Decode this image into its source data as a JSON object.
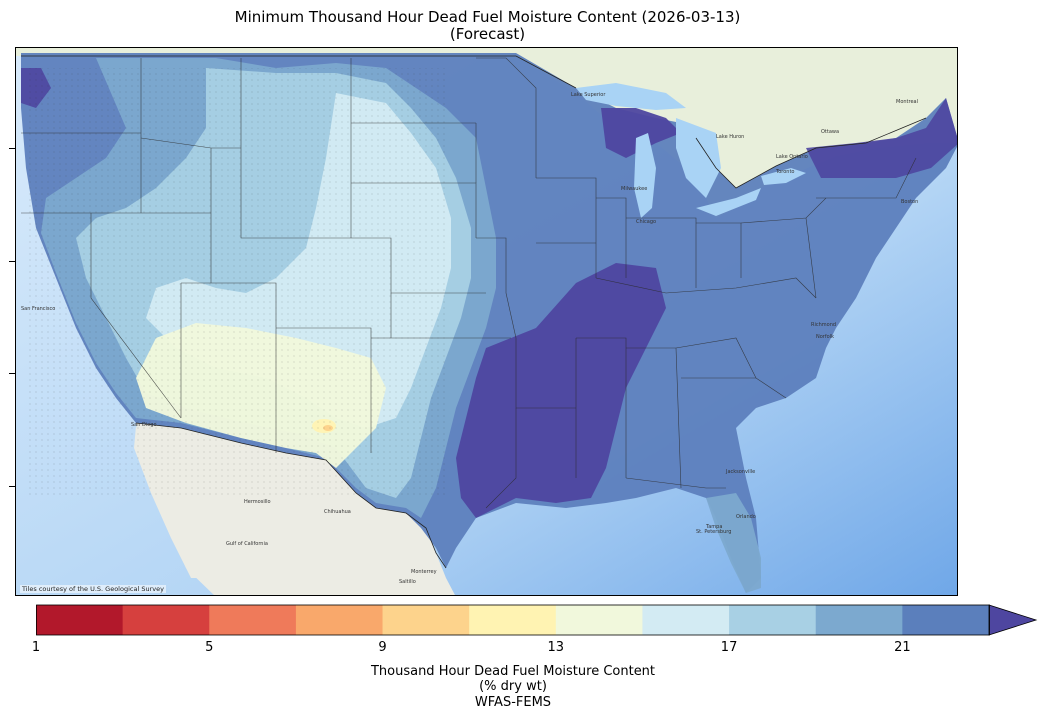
{
  "title_line1": "Minimum Thousand Hour Dead Fuel Moisture Content (2026-03-13)",
  "title_line2": "(Forecast)",
  "map": {
    "credit": "Tiles courtesy of the U.S. Geological Survey",
    "basemap_labels": [
      "San Francisco",
      "San Diego",
      "Hermosillo",
      "Chihuahua",
      "Monterrey",
      "Saltillo",
      "Gulf of California",
      "Lake Superior",
      "Lake Huron",
      "Lake Ontario",
      "Milwaukee",
      "Chicago",
      "Toronto",
      "Ottawa",
      "Montreal",
      "Boston",
      "Richmond",
      "Norfolk",
      "Jacksonville",
      "St. Petersburg",
      "Tampa",
      "Orlando"
    ],
    "colors": {
      "ocean": "#d6e9fb",
      "ocean_deep": "#7fb3ec",
      "land": "#eaf0df",
      "mexico_land": "#ecece6"
    }
  },
  "colorbar": {
    "ticks": [
      "1",
      "5",
      "9",
      "13",
      "17",
      "21"
    ],
    "label_line1": "Thousand Hour Dead Fuel Moisture Content",
    "label_line2": "(% dry wt)",
    "label_line3": "WFAS-FEMS",
    "bin_colors": [
      "#b2182b",
      "#d6403e",
      "#ef7a5a",
      "#f9a86b",
      "#fdd38c",
      "#fff3b2",
      "#f1f8dc",
      "#d3ebf3",
      "#a8d0e4",
      "#7ca9cf",
      "#5b7fbc",
      "#4e46a0"
    ],
    "extend": "max"
  }
}
